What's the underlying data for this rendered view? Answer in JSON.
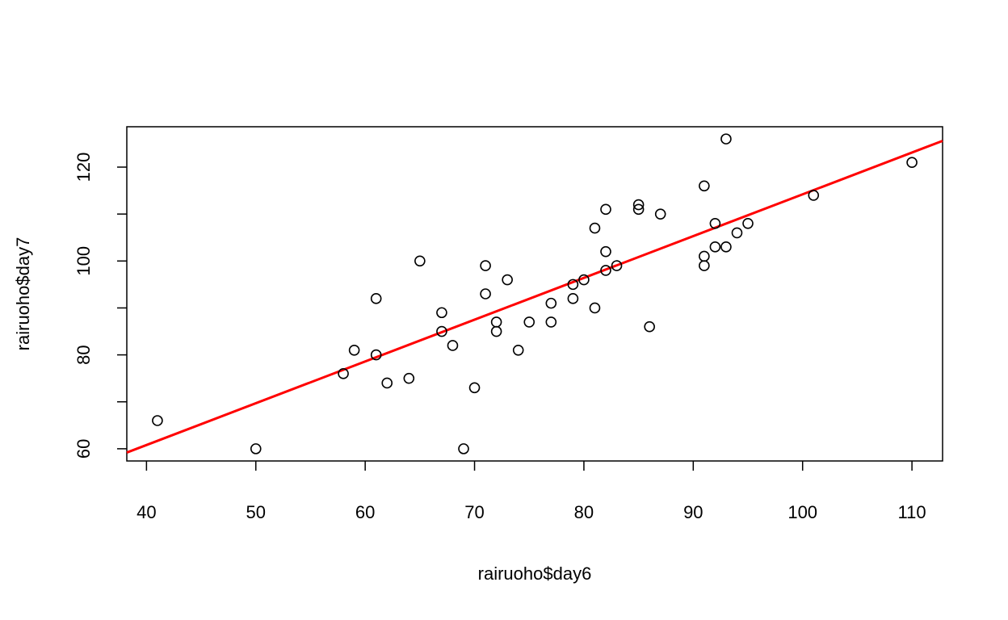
{
  "chart_data": {
    "type": "scatter",
    "title": "",
    "xlabel": "rairuoho$day6",
    "ylabel": "rairuoho$day7",
    "xlim": [
      38.2,
      112.8
    ],
    "ylim": [
      57.4,
      128.6
    ],
    "xticks": [
      40,
      50,
      60,
      70,
      80,
      90,
      100,
      110
    ],
    "yticks": [
      60,
      80,
      100,
      120
    ],
    "x_minor_ticks": [],
    "y_minor_ticks": [
      70,
      90,
      110
    ],
    "grid": false,
    "legend": "none",
    "point_color": "#000000",
    "line_color": "#ff0000",
    "points": [
      [
        41,
        66
      ],
      [
        50,
        60
      ],
      [
        58,
        76
      ],
      [
        59,
        81
      ],
      [
        61,
        92
      ],
      [
        61,
        80
      ],
      [
        62,
        74
      ],
      [
        64,
        75
      ],
      [
        65,
        100
      ],
      [
        67,
        89
      ],
      [
        67,
        85
      ],
      [
        68,
        82
      ],
      [
        69,
        60
      ],
      [
        70,
        73
      ],
      [
        71,
        99
      ],
      [
        71,
        93
      ],
      [
        72,
        87
      ],
      [
        72,
        85
      ],
      [
        73,
        96
      ],
      [
        74,
        81
      ],
      [
        75,
        87
      ],
      [
        77,
        91
      ],
      [
        77,
        87
      ],
      [
        79,
        95
      ],
      [
        79,
        92
      ],
      [
        80,
        96
      ],
      [
        81,
        107
      ],
      [
        81,
        90
      ],
      [
        82,
        111
      ],
      [
        82,
        102
      ],
      [
        82,
        98
      ],
      [
        83,
        99
      ],
      [
        85,
        112
      ],
      [
        85,
        111
      ],
      [
        86,
        86
      ],
      [
        87,
        110
      ],
      [
        91,
        116
      ],
      [
        91,
        101
      ],
      [
        91,
        99
      ],
      [
        92,
        108
      ],
      [
        92,
        103
      ],
      [
        93,
        126
      ],
      [
        93,
        103
      ],
      [
        94,
        106
      ],
      [
        95,
        108
      ],
      [
        101,
        114
      ],
      [
        110,
        121
      ]
    ],
    "regression_line": {
      "slope": 0.89,
      "intercept": 25.2
    }
  }
}
